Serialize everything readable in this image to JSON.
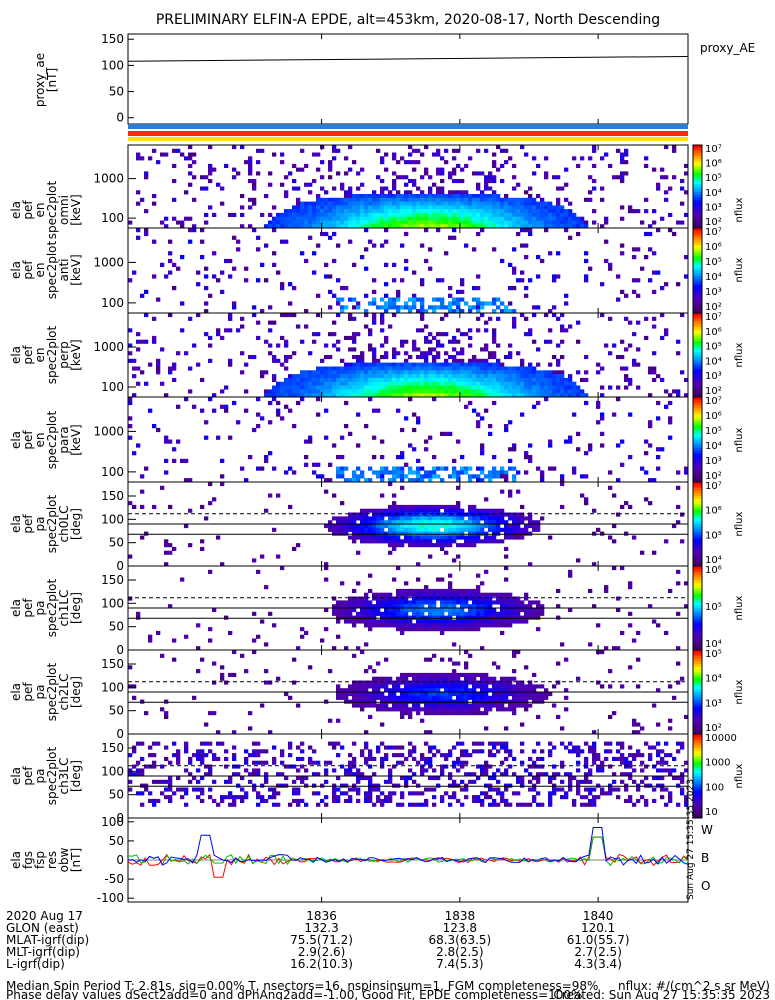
{
  "title": "PRELIMINARY ELFIN-A EPDE, alt=453km, 2020-08-17, North Descending",
  "chart_data": [
    {
      "type": "line",
      "series": [
        {
          "name": "proxy_AE",
          "x": [
            1833.2,
            1841.3
          ],
          "values": [
            108,
            117
          ]
        }
      ],
      "ylabel": [
        "proxy_ae",
        "[nT]"
      ],
      "yticks": [
        0,
        50,
        100,
        150
      ],
      "ylim": [
        -12,
        160
      ],
      "legend": "proxy_AE"
    },
    {
      "type": "heatmap",
      "name": "ela pef en spec2plot omni",
      "ylabel": [
        "ela",
        "pef",
        "en",
        "spec2plot",
        "omni",
        "[keV]"
      ],
      "yticks": [
        100,
        1000
      ],
      "ylog": true,
      "colorbar": {
        "label": "nflux",
        "ticks": [
          "10²",
          "10³",
          "10⁴",
          "10⁵",
          "10⁶",
          "10⁷"
        ]
      }
    },
    {
      "type": "heatmap",
      "name": "ela pef en spec2plot anti",
      "ylabel": [
        "ela",
        "pef",
        "en",
        "spec2plot",
        "anti",
        "[keV]"
      ],
      "yticks": [
        100,
        1000
      ],
      "ylog": true,
      "colorbar": {
        "label": "nflux",
        "ticks": [
          "10²",
          "10³",
          "10⁴",
          "10⁵",
          "10⁶",
          "10⁷"
        ]
      }
    },
    {
      "type": "heatmap",
      "name": "ela pef en spec2plot perp",
      "ylabel": [
        "ela",
        "pef",
        "en",
        "spec2plot",
        "perp",
        "[keV]"
      ],
      "yticks": [
        100,
        1000
      ],
      "ylog": true,
      "colorbar": {
        "label": "nflux",
        "ticks": [
          "10²",
          "10³",
          "10⁴",
          "10⁵",
          "10⁶",
          "10⁷"
        ]
      }
    },
    {
      "type": "heatmap",
      "name": "ela pef en spec2plot para",
      "ylabel": [
        "ela",
        "pef",
        "en",
        "spec2plot",
        "para",
        "[keV]"
      ],
      "yticks": [
        100,
        1000
      ],
      "ylog": true,
      "colorbar": {
        "label": "nflux",
        "ticks": [
          "10²",
          "10³",
          "10⁴",
          "10⁵",
          "10⁶",
          "10⁷"
        ]
      }
    },
    {
      "type": "heatmap",
      "name": "ela pef pa spec2plot ch0LC",
      "ylabel": [
        "ela",
        "pef",
        "pa",
        "spec2plot",
        "ch0LC",
        "[deg]"
      ],
      "yticks": [
        0,
        50,
        100,
        150
      ],
      "ylim": [
        0,
        180
      ],
      "colorbar": {
        "label": "nflux",
        "ticks": [
          "10⁴",
          "10⁵",
          "10⁶",
          "10⁷"
        ]
      }
    },
    {
      "type": "heatmap",
      "name": "ela pef pa spec2plot ch1LC",
      "ylabel": [
        "ela",
        "pef",
        "pa",
        "spec2plot",
        "ch1LC",
        "[deg]"
      ],
      "yticks": [
        0,
        50,
        100,
        150
      ],
      "ylim": [
        0,
        180
      ],
      "colorbar": {
        "label": "nflux",
        "ticks": [
          "10⁴",
          "10⁵",
          "10⁶"
        ]
      }
    },
    {
      "type": "heatmap",
      "name": "ela pef pa spec2plot ch2LC",
      "ylabel": [
        "ela",
        "pef",
        "pa",
        "spec2plot",
        "ch2LC",
        "[deg]"
      ],
      "yticks": [
        0,
        50,
        100,
        150
      ],
      "ylim": [
        0,
        180
      ],
      "colorbar": {
        "label": "nflux",
        "ticks": [
          "10²",
          "10³",
          "10⁴",
          "10⁵"
        ]
      }
    },
    {
      "type": "heatmap",
      "name": "ela pef pa spec2plot ch3LC",
      "ylabel": [
        "ela",
        "pef",
        "pa",
        "spec2plot",
        "ch3LC",
        "[deg]"
      ],
      "yticks": [
        0,
        50,
        100,
        150
      ],
      "ylim": [
        0,
        180
      ],
      "colorbar": {
        "label": "nflux",
        "ticks": [
          "10",
          "100",
          "1000",
          "10000"
        ]
      }
    },
    {
      "type": "line",
      "series": [
        {
          "name": "W"
        },
        {
          "name": "B"
        },
        {
          "name": "O"
        }
      ],
      "ylabel": [
        "ela",
        "fgs",
        "fsp",
        "res",
        "obw",
        "[nT]"
      ],
      "yticks": [
        -100,
        -50,
        0,
        50,
        100
      ],
      "ylim": [
        -110,
        110
      ],
      "legend": [
        "W",
        "B",
        "O"
      ],
      "side_text": "Sun Aug 27 15:35:35 2023"
    }
  ],
  "xaxis": {
    "ticks": [
      "1836",
      "1838",
      "1840"
    ],
    "rows": [
      {
        "label": "2020 Aug 17",
        "values": [
          "1836",
          "1838",
          "1840"
        ]
      },
      {
        "label": "GLON (east)",
        "values": [
          "132.3",
          "123.8",
          "120.1"
        ]
      },
      {
        "label": "MLAT-igrf(dip)",
        "values": [
          "75.5(71.2)",
          "68.3(63.5)",
          "61.0(55.7)"
        ]
      },
      {
        "label": "MLT-igrf(dip)",
        "values": [
          "2.9(2.6)",
          "2.8(2.5)",
          "2.7(2.5)"
        ]
      },
      {
        "label": "L-igrf(dip)",
        "values": [
          "16.2(10.3)",
          "7.4(5.3)",
          "4.3(3.4)"
        ]
      }
    ]
  },
  "footer": {
    "left1": "Median Spin Period T: 2.81s, sig=0.00% T, nsectors=16, nspinsinsum=1, FGM completeness=98%",
    "left2": "Phase delay values dSect2add=0 and dPhAng2add=-1.00, Good Fit, EPDE completeness=100%",
    "right1": "nflux: #/(cm^2 s sr MeV)",
    "right2": "Created: Sun Aug 27 15:35:35 2023"
  },
  "colors": {
    "bar_blue": "#2a7fd4",
    "bar_red": "#ff2a00",
    "bar_yellow": "#ffe000",
    "W": "#ff0000",
    "B": "#00c000",
    "O": "#0000ff"
  }
}
